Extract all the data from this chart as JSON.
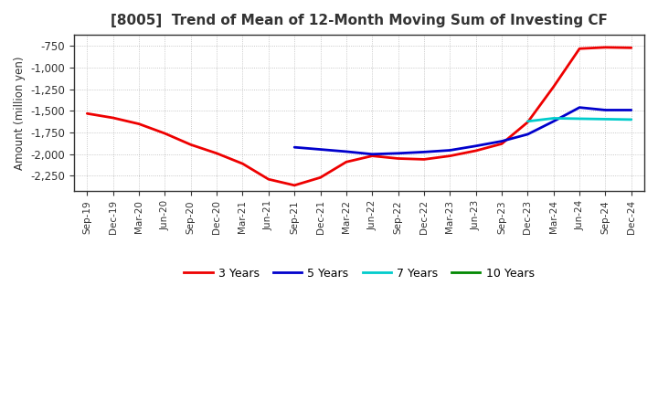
{
  "title": "[8005]  Trend of Mean of 12-Month Moving Sum of Investing CF",
  "ylabel": "Amount (million yen)",
  "background_color": "#ffffff",
  "grid_color": "#888888",
  "ylim": [
    -2430,
    -620
  ],
  "yticks": [
    -2250,
    -2000,
    -1750,
    -1500,
    -1250,
    -1000,
    -750
  ],
  "x_labels": [
    "Sep-19",
    "Dec-19",
    "Mar-20",
    "Jun-20",
    "Sep-20",
    "Dec-20",
    "Mar-21",
    "Jun-21",
    "Sep-21",
    "Dec-21",
    "Mar-22",
    "Jun-22",
    "Sep-22",
    "Dec-22",
    "Mar-23",
    "Jun-23",
    "Sep-23",
    "Dec-23",
    "Mar-24",
    "Jun-24",
    "Sep-24",
    "Dec-24"
  ],
  "title_color": "#333333",
  "series": {
    "3 Years": {
      "color": "#ee0000",
      "linewidth": 2.0,
      "values": [
        -1530,
        -1580,
        -1650,
        -1760,
        -1890,
        -1990,
        -2110,
        -2290,
        -2360,
        -2270,
        -2090,
        -2020,
        -2050,
        -2060,
        -2020,
        -1960,
        -1880,
        -1630,
        -1220,
        -780,
        -765,
        -770
      ]
    },
    "5 Years": {
      "color": "#0000cc",
      "linewidth": 2.0,
      "values": [
        null,
        null,
        null,
        null,
        null,
        null,
        null,
        null,
        -1920,
        -1945,
        -1970,
        -2000,
        -1990,
        -1975,
        -1955,
        -1905,
        -1850,
        -1770,
        -1620,
        -1460,
        -1490,
        -1490
      ]
    },
    "7 Years": {
      "color": "#00cccc",
      "linewidth": 2.0,
      "values": [
        null,
        null,
        null,
        null,
        null,
        null,
        null,
        null,
        null,
        null,
        null,
        null,
        null,
        null,
        null,
        null,
        null,
        -1620,
        -1585,
        -1590,
        -1595,
        -1600
      ]
    },
    "10 Years": {
      "color": "#008800",
      "linewidth": 2.0,
      "values": [
        null,
        null,
        null,
        null,
        null,
        null,
        null,
        null,
        null,
        null,
        null,
        null,
        null,
        null,
        null,
        null,
        null,
        null,
        null,
        null,
        null,
        null
      ]
    }
  },
  "legend": {
    "entries": [
      "3 Years",
      "5 Years",
      "7 Years",
      "10 Years"
    ],
    "colors": [
      "#ee0000",
      "#0000cc",
      "#00cccc",
      "#008800"
    ]
  }
}
